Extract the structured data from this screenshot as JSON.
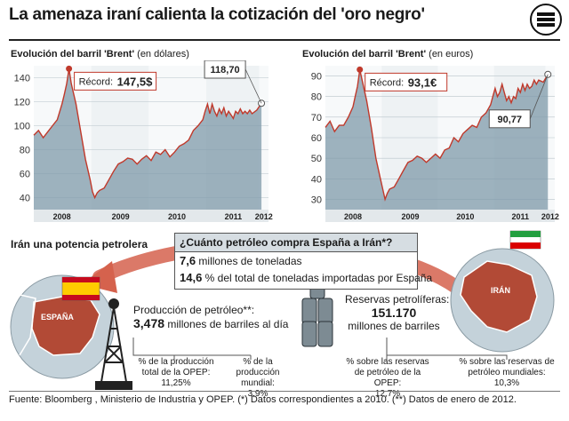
{
  "header": {
    "title": "La amenaza iraní calienta la cotización del 'oro negro'"
  },
  "chart_usd": {
    "title": "Evolución del barril 'Brent'",
    "unit": "(en dólares)"
  },
  "chart_eur": {
    "title": "Evolución del barril 'Brent'",
    "unit": "(en euros)"
  },
  "chart_data": [
    {
      "type": "area",
      "title": "Evolución del barril 'Brent' (en dólares)",
      "x_ticks": [
        "2008",
        "2009",
        "2010",
        "2011",
        "2012"
      ],
      "y_ticks": [
        40,
        60,
        80,
        100,
        120,
        140
      ],
      "ylim": [
        30,
        150
      ],
      "record_label": "Récord:",
      "record_value": "147,5$",
      "last_value": "118,70",
      "series": [
        {
          "values": [
            [
              0.0,
              92
            ],
            [
              0.02,
              96
            ],
            [
              0.04,
              90
            ],
            [
              0.06,
              95
            ],
            [
              0.08,
              100
            ],
            [
              0.1,
              105
            ],
            [
              0.12,
              118
            ],
            [
              0.13,
              126
            ],
            [
              0.14,
              135
            ],
            [
              0.15,
              147.5
            ],
            [
              0.16,
              135
            ],
            [
              0.18,
              118
            ],
            [
              0.2,
              95
            ],
            [
              0.22,
              72
            ],
            [
              0.24,
              55
            ],
            [
              0.25,
              45
            ],
            [
              0.26,
              40
            ],
            [
              0.27,
              44
            ],
            [
              0.28,
              46
            ],
            [
              0.3,
              48
            ],
            [
              0.32,
              55
            ],
            [
              0.34,
              62
            ],
            [
              0.36,
              68
            ],
            [
              0.38,
              70
            ],
            [
              0.4,
              73
            ],
            [
              0.42,
              72
            ],
            [
              0.44,
              68
            ],
            [
              0.46,
              72
            ],
            [
              0.48,
              75
            ],
            [
              0.5,
              71
            ],
            [
              0.52,
              78
            ],
            [
              0.54,
              76
            ],
            [
              0.56,
              80
            ],
            [
              0.58,
              74
            ],
            [
              0.6,
              78
            ],
            [
              0.62,
              83
            ],
            [
              0.64,
              85
            ],
            [
              0.66,
              88
            ],
            [
              0.68,
              96
            ],
            [
              0.7,
              100
            ],
            [
              0.72,
              105
            ],
            [
              0.73,
              112
            ],
            [
              0.74,
              118
            ],
            [
              0.75,
              110
            ],
            [
              0.76,
              118
            ],
            [
              0.77,
              112
            ],
            [
              0.78,
              108
            ],
            [
              0.79,
              114
            ],
            [
              0.8,
              110
            ],
            [
              0.81,
              115
            ],
            [
              0.82,
              108
            ],
            [
              0.83,
              112
            ],
            [
              0.84,
              109
            ],
            [
              0.85,
              106
            ],
            [
              0.86,
              112
            ],
            [
              0.87,
              110
            ],
            [
              0.88,
              114
            ],
            [
              0.89,
              110
            ],
            [
              0.9,
              112
            ],
            [
              0.91,
              110
            ],
            [
              0.92,
              113
            ],
            [
              0.93,
              110
            ],
            [
              0.95,
              113
            ],
            [
              0.97,
              118.7
            ]
          ]
        }
      ]
    },
    {
      "type": "area",
      "title": "Evolución del barril 'Brent' (en euros)",
      "x_ticks": [
        "2008",
        "2009",
        "2010",
        "2011",
        "2012"
      ],
      "y_ticks": [
        30,
        40,
        50,
        60,
        70,
        80,
        90
      ],
      "ylim": [
        25,
        95
      ],
      "record_label": "Récord:",
      "record_value": "93,1€",
      "last_value": "90,77",
      "series": [
        {
          "values": [
            [
              0.0,
              65
            ],
            [
              0.02,
              68
            ],
            [
              0.04,
              63
            ],
            [
              0.06,
              66
            ],
            [
              0.08,
              66
            ],
            [
              0.1,
              70
            ],
            [
              0.12,
              75
            ],
            [
              0.13,
              80
            ],
            [
              0.14,
              85
            ],
            [
              0.15,
              93.1
            ],
            [
              0.16,
              88
            ],
            [
              0.18,
              78
            ],
            [
              0.2,
              65
            ],
            [
              0.22,
              50
            ],
            [
              0.24,
              40
            ],
            [
              0.25,
              35
            ],
            [
              0.26,
              30
            ],
            [
              0.27,
              33
            ],
            [
              0.28,
              35
            ],
            [
              0.3,
              36
            ],
            [
              0.32,
              40
            ],
            [
              0.34,
              44
            ],
            [
              0.36,
              48
            ],
            [
              0.38,
              49
            ],
            [
              0.4,
              51
            ],
            [
              0.42,
              50
            ],
            [
              0.44,
              48
            ],
            [
              0.46,
              50
            ],
            [
              0.48,
              52
            ],
            [
              0.5,
              50
            ],
            [
              0.52,
              54
            ],
            [
              0.54,
              55
            ],
            [
              0.56,
              60
            ],
            [
              0.58,
              58
            ],
            [
              0.6,
              62
            ],
            [
              0.62,
              64
            ],
            [
              0.64,
              66
            ],
            [
              0.66,
              65
            ],
            [
              0.68,
              70
            ],
            [
              0.7,
              72
            ],
            [
              0.72,
              76
            ],
            [
              0.73,
              80
            ],
            [
              0.74,
              84
            ],
            [
              0.75,
              80
            ],
            [
              0.76,
              82
            ],
            [
              0.77,
              86
            ],
            [
              0.78,
              82
            ],
            [
              0.79,
              78
            ],
            [
              0.8,
              80
            ],
            [
              0.81,
              77
            ],
            [
              0.82,
              80
            ],
            [
              0.83,
              79
            ],
            [
              0.84,
              84
            ],
            [
              0.85,
              82
            ],
            [
              0.86,
              86
            ],
            [
              0.87,
              83
            ],
            [
              0.88,
              86
            ],
            [
              0.89,
              84
            ],
            [
              0.9,
              85
            ],
            [
              0.91,
              88
            ],
            [
              0.92,
              86
            ],
            [
              0.93,
              88
            ],
            [
              0.95,
              87
            ],
            [
              0.97,
              90.77
            ]
          ]
        }
      ]
    }
  ],
  "iran_section": {
    "title": "Irán una potencia petrolera",
    "question": "¿Cuánto petróleo compra España a Irán*?",
    "line1_value": "7,6",
    "line1_text": "millones de toneladas",
    "line2_value": "14,6",
    "line2_text": "% del total de toneladas importadas por España",
    "map_spain_label": "ESPAÑA",
    "map_iran_label": "IRÁN"
  },
  "production": {
    "label": "Producción de petróleo**:",
    "value": "3,478",
    "unit": "millones de barriles al día",
    "opep_label": "% de la producción total de la OPEP:",
    "opep_value": "11,25%",
    "world_label": "% de la producción mundial:",
    "world_value": "3,9%"
  },
  "reserves": {
    "label": "Reservas petrolíferas:",
    "value": "151.170",
    "unit": "millones de barriles",
    "opep_label": "% sobre las reservas de petróleo de la OPEP:",
    "opep_value": "12,7%",
    "world_label": "% sobre las reservas de petróleo mundiales:",
    "world_value": "10,3%"
  },
  "footer": {
    "text": "Fuente: Bloomberg , Ministerio de Industria y OPEP. (*) Datos correspondientes a 2010. (**) Datos de enero de 2012."
  },
  "colors": {
    "area": "#7f9aaa",
    "area_light": "#c9d5dc",
    "line": "#c0392b",
    "accent": "#c0392b",
    "map_sea": "#c4d2da"
  }
}
